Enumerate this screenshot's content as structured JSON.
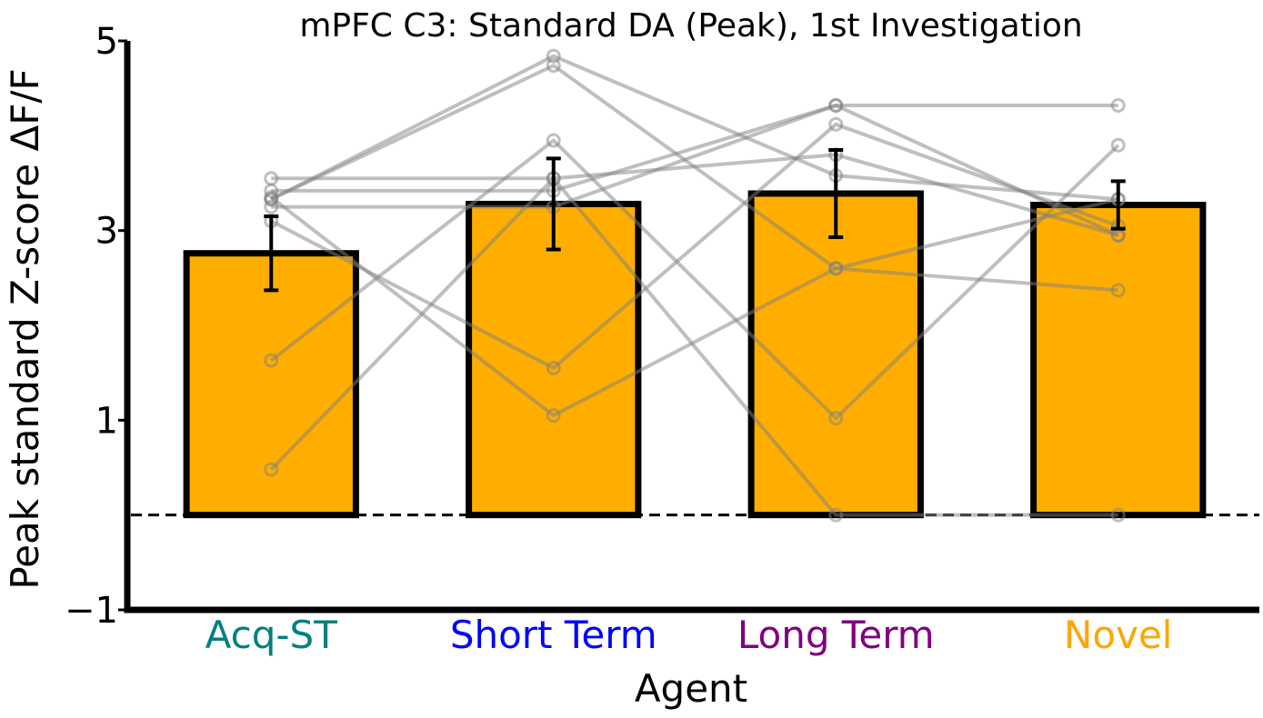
{
  "chart_data": {
    "type": "bar",
    "title": "mPFC C3: Standard DA (Peak), 1st Investigation",
    "xlabel": "Agent",
    "ylabel": "Peak standard Z-score ΔF/F",
    "ylim": [
      -1,
      5
    ],
    "yticks": [
      -1,
      1,
      3,
      5
    ],
    "ytick_labels": [
      "−1",
      "1",
      "3",
      "5"
    ],
    "reference_line_y": 0,
    "categories": [
      "Acq-ST",
      "Short Term",
      "Long Term",
      "Novel"
    ],
    "category_colors": [
      "#008080",
      "#0000ff",
      "#800080",
      "#ffa500"
    ],
    "bar_color": "#ffae00",
    "values": [
      2.76,
      3.28,
      3.39,
      3.27
    ],
    "errors": [
      0.39,
      0.48,
      0.46,
      0.25
    ],
    "subjects": [
      [
        3.55,
        3.55,
        3.8,
        2.95
      ],
      [
        3.42,
        3.42,
        4.32,
        2.95
      ],
      [
        3.33,
        4.84,
        3.58,
        3.33
      ],
      [
        3.33,
        4.74,
        2.6,
        2.37
      ],
      [
        3.1,
        1.55,
        4.12,
        3.05
      ],
      [
        3.25,
        3.25,
        4.32,
        4.32
      ],
      [
        1.63,
        3.95,
        1.02,
        3.9
      ],
      [
        0.48,
        3.55,
        0.0,
        0.0
      ],
      [
        3.35,
        1.05,
        2.6,
        3.33
      ]
    ]
  }
}
